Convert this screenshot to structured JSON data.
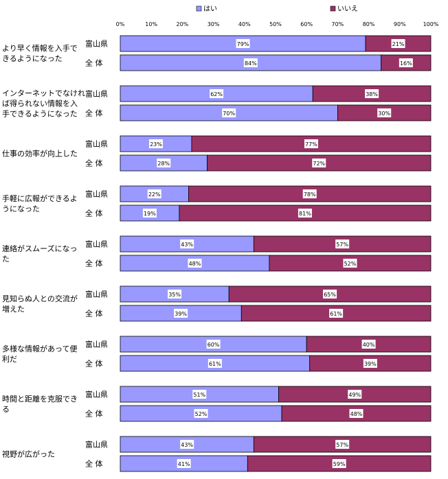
{
  "colors": {
    "yes": "#9999ff",
    "no": "#993366",
    "border": "#000000",
    "label_box": "#ffffff"
  },
  "chart_data": {
    "type": "bar",
    "stacked": true,
    "orientation": "horizontal",
    "legend": {
      "position": "top",
      "entries": [
        "はい",
        "いいえ"
      ]
    },
    "x_ticks": [
      "0%",
      "10%",
      "20%",
      "30%",
      "40%",
      "50%",
      "60%",
      "70%",
      "80%",
      "90%",
      "100%"
    ],
    "xlim": [
      0,
      100
    ],
    "grid": false,
    "series_names": [
      "はい",
      "いいえ"
    ],
    "groups": [
      {
        "category_lines": [
          "より早く情報を入手で",
          "きるようになった"
        ],
        "rows": [
          {
            "label": "富山県",
            "yes": 79,
            "no": 21
          },
          {
            "label": "全 体",
            "yes": 84,
            "no": 16
          }
        ]
      },
      {
        "category_lines": [
          "インターネットでなけれ",
          "ば得られない情報を入",
          "手できるようになった"
        ],
        "rows": [
          {
            "label": "富山県",
            "yes": 62,
            "no": 38
          },
          {
            "label": "全 体",
            "yes": 70,
            "no": 30
          }
        ]
      },
      {
        "category_lines": [
          "仕事の効率が向上した"
        ],
        "rows": [
          {
            "label": "富山県",
            "yes": 23,
            "no": 77
          },
          {
            "label": "全 体",
            "yes": 28,
            "no": 72
          }
        ]
      },
      {
        "category_lines": [
          "手軽に広報ができるよ",
          "うになった"
        ],
        "rows": [
          {
            "label": "富山県",
            "yes": 22,
            "no": 78
          },
          {
            "label": "全 体",
            "yes": 19,
            "no": 81
          }
        ]
      },
      {
        "category_lines": [
          "連絡がスムーズになっ",
          "た"
        ],
        "rows": [
          {
            "label": "富山県",
            "yes": 43,
            "no": 57
          },
          {
            "label": "全 体",
            "yes": 48,
            "no": 52
          }
        ]
      },
      {
        "category_lines": [
          "見知らぬ人との交流が",
          "増えた"
        ],
        "rows": [
          {
            "label": "富山県",
            "yes": 35,
            "no": 65
          },
          {
            "label": "全 体",
            "yes": 39,
            "no": 61
          }
        ]
      },
      {
        "category_lines": [
          "多様な情報があって便",
          "利だ"
        ],
        "rows": [
          {
            "label": "富山県",
            "yes": 60,
            "no": 40
          },
          {
            "label": "全 体",
            "yes": 61,
            "no": 39
          }
        ]
      },
      {
        "category_lines": [
          "時間と距離を克服でき",
          "る"
        ],
        "rows": [
          {
            "label": "富山県",
            "yes": 51,
            "no": 49
          },
          {
            "label": "全 体",
            "yes": 52,
            "no": 48
          }
        ]
      },
      {
        "category_lines": [
          "視野が広がった"
        ],
        "rows": [
          {
            "label": "富山県",
            "yes": 43,
            "no": 57
          },
          {
            "label": "全 体",
            "yes": 41,
            "no": 59
          }
        ]
      }
    ]
  }
}
